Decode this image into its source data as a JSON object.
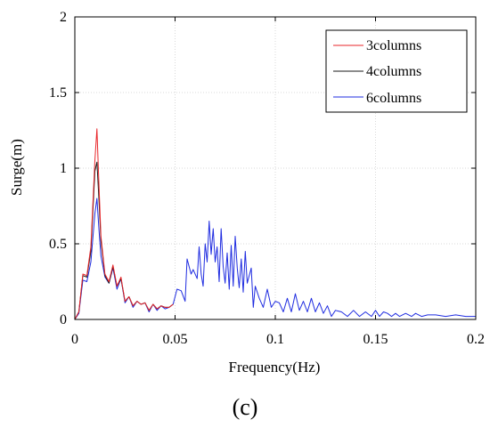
{
  "chart_data": {
    "type": "line",
    "xlabel": "Frequency(Hz)",
    "ylabel": "Surge(m)",
    "xlim": [
      0,
      0.2
    ],
    "ylim": [
      0,
      2
    ],
    "xticks": [
      0,
      0.05,
      0.1,
      0.15,
      0.2
    ],
    "xtick_labels": [
      "0",
      "0.05",
      "0.1",
      "0.15",
      "0.2"
    ],
    "yticks": [
      0,
      0.5,
      1,
      1.5,
      2
    ],
    "ytick_labels": [
      "0",
      "0.5",
      "1",
      "1.5",
      "2"
    ],
    "grid": true,
    "legend_position": "top-right",
    "caption": "(c)",
    "series": [
      {
        "name": "3columns",
        "color": "#e8262a",
        "points": [
          [
            0.0,
            0.0
          ],
          [
            0.002,
            0.05
          ],
          [
            0.004,
            0.3
          ],
          [
            0.006,
            0.29
          ],
          [
            0.008,
            0.48
          ],
          [
            0.01,
            1.05
          ],
          [
            0.011,
            1.26
          ],
          [
            0.012,
            0.9
          ],
          [
            0.013,
            0.55
          ],
          [
            0.015,
            0.3
          ],
          [
            0.017,
            0.25
          ],
          [
            0.019,
            0.36
          ],
          [
            0.021,
            0.22
          ],
          [
            0.023,
            0.28
          ],
          [
            0.025,
            0.12
          ],
          [
            0.027,
            0.15
          ],
          [
            0.029,
            0.09
          ],
          [
            0.031,
            0.12
          ],
          [
            0.033,
            0.1
          ],
          [
            0.035,
            0.11
          ],
          [
            0.037,
            0.06
          ],
          [
            0.039,
            0.1
          ],
          [
            0.041,
            0.07
          ],
          [
            0.043,
            0.09
          ],
          [
            0.045,
            0.08
          ],
          [
            0.047,
            0.08
          ],
          [
            0.049,
            0.1
          ]
        ]
      },
      {
        "name": "4columns",
        "color": "#1a1a1a",
        "points": [
          [
            0.0,
            0.0
          ],
          [
            0.002,
            0.05
          ],
          [
            0.004,
            0.29
          ],
          [
            0.006,
            0.28
          ],
          [
            0.008,
            0.45
          ],
          [
            0.01,
            0.98
          ],
          [
            0.011,
            1.04
          ],
          [
            0.012,
            0.8
          ],
          [
            0.013,
            0.52
          ],
          [
            0.015,
            0.29
          ],
          [
            0.017,
            0.24
          ],
          [
            0.019,
            0.35
          ],
          [
            0.021,
            0.22
          ],
          [
            0.023,
            0.27
          ],
          [
            0.025,
            0.12
          ],
          [
            0.027,
            0.15
          ],
          [
            0.029,
            0.09
          ],
          [
            0.031,
            0.12
          ],
          [
            0.033,
            0.1
          ],
          [
            0.035,
            0.11
          ],
          [
            0.037,
            0.06
          ],
          [
            0.039,
            0.1
          ],
          [
            0.041,
            0.07
          ],
          [
            0.043,
            0.09
          ],
          [
            0.045,
            0.08
          ],
          [
            0.047,
            0.08
          ],
          [
            0.049,
            0.1
          ]
        ]
      },
      {
        "name": "6columns",
        "color": "#1f2ce0",
        "points": [
          [
            0.0,
            0.0
          ],
          [
            0.002,
            0.04
          ],
          [
            0.004,
            0.26
          ],
          [
            0.006,
            0.25
          ],
          [
            0.008,
            0.38
          ],
          [
            0.01,
            0.7
          ],
          [
            0.011,
            0.8
          ],
          [
            0.012,
            0.6
          ],
          [
            0.013,
            0.42
          ],
          [
            0.015,
            0.28
          ],
          [
            0.017,
            0.24
          ],
          [
            0.019,
            0.34
          ],
          [
            0.021,
            0.2
          ],
          [
            0.023,
            0.27
          ],
          [
            0.025,
            0.11
          ],
          [
            0.027,
            0.15
          ],
          [
            0.029,
            0.08
          ],
          [
            0.031,
            0.12
          ],
          [
            0.033,
            0.1
          ],
          [
            0.035,
            0.11
          ],
          [
            0.037,
            0.05
          ],
          [
            0.039,
            0.1
          ],
          [
            0.041,
            0.06
          ],
          [
            0.043,
            0.09
          ],
          [
            0.045,
            0.07
          ],
          [
            0.047,
            0.08
          ],
          [
            0.049,
            0.1
          ],
          [
            0.051,
            0.2
          ],
          [
            0.053,
            0.19
          ],
          [
            0.055,
            0.12
          ],
          [
            0.056,
            0.4
          ],
          [
            0.058,
            0.3
          ],
          [
            0.059,
            0.33
          ],
          [
            0.061,
            0.27
          ],
          [
            0.062,
            0.48
          ],
          [
            0.063,
            0.3
          ],
          [
            0.064,
            0.22
          ],
          [
            0.065,
            0.5
          ],
          [
            0.066,
            0.38
          ],
          [
            0.067,
            0.65
          ],
          [
            0.068,
            0.43
          ],
          [
            0.069,
            0.6
          ],
          [
            0.07,
            0.38
          ],
          [
            0.071,
            0.48
          ],
          [
            0.072,
            0.25
          ],
          [
            0.073,
            0.6
          ],
          [
            0.074,
            0.35
          ],
          [
            0.075,
            0.24
          ],
          [
            0.076,
            0.44
          ],
          [
            0.077,
            0.2
          ],
          [
            0.078,
            0.49
          ],
          [
            0.079,
            0.22
          ],
          [
            0.08,
            0.55
          ],
          [
            0.081,
            0.34
          ],
          [
            0.082,
            0.21
          ],
          [
            0.083,
            0.4
          ],
          [
            0.084,
            0.18
          ],
          [
            0.085,
            0.45
          ],
          [
            0.086,
            0.24
          ],
          [
            0.088,
            0.34
          ],
          [
            0.089,
            0.08
          ],
          [
            0.09,
            0.22
          ],
          [
            0.092,
            0.14
          ],
          [
            0.094,
            0.08
          ],
          [
            0.096,
            0.2
          ],
          [
            0.098,
            0.08
          ],
          [
            0.1,
            0.12
          ],
          [
            0.102,
            0.11
          ],
          [
            0.104,
            0.05
          ],
          [
            0.106,
            0.14
          ],
          [
            0.108,
            0.05
          ],
          [
            0.11,
            0.17
          ],
          [
            0.112,
            0.06
          ],
          [
            0.114,
            0.12
          ],
          [
            0.116,
            0.05
          ],
          [
            0.118,
            0.14
          ],
          [
            0.12,
            0.05
          ],
          [
            0.122,
            0.11
          ],
          [
            0.124,
            0.04
          ],
          [
            0.126,
            0.09
          ],
          [
            0.128,
            0.02
          ],
          [
            0.13,
            0.06
          ],
          [
            0.133,
            0.05
          ],
          [
            0.136,
            0.02
          ],
          [
            0.139,
            0.06
          ],
          [
            0.142,
            0.02
          ],
          [
            0.145,
            0.05
          ],
          [
            0.148,
            0.02
          ],
          [
            0.15,
            0.06
          ],
          [
            0.152,
            0.02
          ],
          [
            0.154,
            0.05
          ],
          [
            0.156,
            0.04
          ],
          [
            0.158,
            0.02
          ],
          [
            0.16,
            0.04
          ],
          [
            0.162,
            0.02
          ],
          [
            0.165,
            0.04
          ],
          [
            0.168,
            0.02
          ],
          [
            0.17,
            0.04
          ],
          [
            0.173,
            0.02
          ],
          [
            0.176,
            0.03
          ],
          [
            0.18,
            0.03
          ],
          [
            0.185,
            0.02
          ],
          [
            0.19,
            0.03
          ],
          [
            0.195,
            0.02
          ],
          [
            0.2,
            0.02
          ]
        ]
      }
    ]
  }
}
